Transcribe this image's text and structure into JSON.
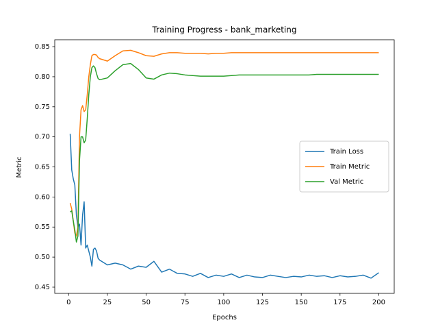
{
  "chart_data": {
    "type": "line",
    "title": "Training Progress - bank_marketing",
    "xlabel": "Epochs",
    "ylabel": "Metric",
    "x": [
      1,
      2,
      3,
      4,
      5,
      6,
      7,
      8,
      9,
      10,
      11,
      12,
      13,
      14,
      15,
      16,
      17,
      18,
      19,
      20,
      25,
      30,
      35,
      40,
      45,
      50,
      55,
      60,
      65,
      70,
      75,
      80,
      85,
      90,
      95,
      100,
      105,
      110,
      115,
      120,
      125,
      130,
      135,
      140,
      145,
      150,
      155,
      160,
      165,
      170,
      175,
      180,
      185,
      190,
      195,
      200
    ],
    "series": [
      {
        "name": "Train Loss",
        "color": "#1f77b4",
        "values": [
          0.705,
          0.645,
          0.63,
          0.62,
          0.57,
          0.55,
          0.555,
          0.52,
          0.57,
          0.592,
          0.515,
          0.52,
          0.51,
          0.5,
          0.485,
          0.513,
          0.515,
          0.51,
          0.498,
          0.495,
          0.487,
          0.49,
          0.487,
          0.48,
          0.485,
          0.483,
          0.493,
          0.475,
          0.48,
          0.473,
          0.472,
          0.468,
          0.473,
          0.466,
          0.47,
          0.468,
          0.472,
          0.466,
          0.47,
          0.467,
          0.466,
          0.47,
          0.468,
          0.466,
          0.468,
          0.467,
          0.47,
          0.468,
          0.469,
          0.466,
          0.469,
          0.467,
          0.468,
          0.47,
          0.465,
          0.474
        ]
      },
      {
        "name": "Train Metric",
        "color": "#ff7f0e",
        "values": [
          0.59,
          0.58,
          0.56,
          0.54,
          0.535,
          0.55,
          0.7,
          0.745,
          0.752,
          0.742,
          0.745,
          0.77,
          0.8,
          0.82,
          0.835,
          0.837,
          0.837,
          0.836,
          0.832,
          0.83,
          0.826,
          0.835,
          0.843,
          0.844,
          0.84,
          0.835,
          0.834,
          0.838,
          0.84,
          0.84,
          0.839,
          0.839,
          0.839,
          0.838,
          0.839,
          0.839,
          0.84,
          0.84,
          0.84,
          0.84,
          0.84,
          0.84,
          0.84,
          0.84,
          0.84,
          0.84,
          0.84,
          0.84,
          0.84,
          0.84,
          0.84,
          0.84,
          0.84,
          0.84,
          0.84,
          0.84
        ]
      },
      {
        "name": "Val Metric",
        "color": "#2ca02c",
        "values": [
          0.575,
          0.577,
          0.56,
          0.545,
          0.525,
          0.535,
          0.66,
          0.7,
          0.7,
          0.69,
          0.695,
          0.73,
          0.77,
          0.8,
          0.815,
          0.818,
          0.815,
          0.805,
          0.797,
          0.795,
          0.798,
          0.81,
          0.82,
          0.822,
          0.812,
          0.798,
          0.796,
          0.803,
          0.806,
          0.805,
          0.803,
          0.802,
          0.801,
          0.801,
          0.801,
          0.801,
          0.802,
          0.803,
          0.803,
          0.803,
          0.803,
          0.803,
          0.803,
          0.803,
          0.803,
          0.803,
          0.803,
          0.804,
          0.804,
          0.804,
          0.804,
          0.804,
          0.804,
          0.804,
          0.804,
          0.804
        ]
      }
    ],
    "xlim": [
      -8.95,
      209.95
    ],
    "ylim": [
      0.4397,
      0.8615
    ],
    "xticks": [
      0,
      25,
      50,
      75,
      100,
      125,
      150,
      175,
      200
    ],
    "yticks": [
      {
        "value": 0.45,
        "label": "0.45"
      },
      {
        "value": 0.5,
        "label": "0.50"
      },
      {
        "value": 0.55,
        "label": "0.55"
      },
      {
        "value": 0.6,
        "label": "0.60"
      },
      {
        "value": 0.65,
        "label": "0.65"
      },
      {
        "value": 0.7,
        "label": "0.70"
      },
      {
        "value": 0.75,
        "label": "0.75"
      },
      {
        "value": 0.8,
        "label": "0.80"
      },
      {
        "value": 0.85,
        "label": "0.85"
      }
    ],
    "legend": "center right",
    "grid": false
  }
}
